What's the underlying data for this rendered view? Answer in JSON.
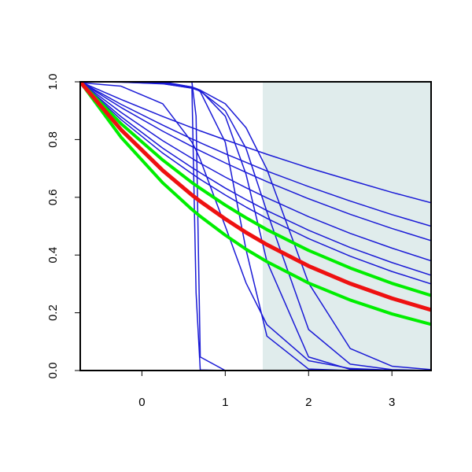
{
  "chart_data": {
    "type": "line",
    "xlim": [
      -0.74,
      3.47
    ],
    "ylim": [
      0,
      1
    ],
    "xticks": [
      0,
      1,
      2,
      3
    ],
    "yticks": [
      {
        "value": 0,
        "label": "0.0"
      },
      {
        "value": 0.2,
        "label": "0.2"
      },
      {
        "value": 0.4,
        "label": "0.4"
      },
      {
        "value": 0.6,
        "label": "0.6"
      },
      {
        "value": 0.8,
        "label": "0.8"
      },
      {
        "value": 1,
        "label": "1.0"
      }
    ],
    "shade": {
      "x": [
        1.45,
        3.47
      ],
      "color": "#e0ecec"
    },
    "x": [
      -0.74,
      -0.25,
      0.25,
      0.6,
      0.65,
      0.7,
      1,
      1.25,
      1.5,
      2,
      2.5,
      3,
      3.47
    ],
    "series": [
      {
        "color": "#1a1ad6",
        "width": 1.5,
        "values": [
          1,
          0.939,
          0.88,
          0.841,
          0.836,
          0.83,
          0.799,
          0.774,
          0.749,
          0.702,
          0.659,
          0.617,
          0.581
        ]
      },
      {
        "color": "#1a1ad6",
        "width": 1.5,
        "values": [
          1,
          0.922,
          0.85,
          0.802,
          0.796,
          0.789,
          0.751,
          0.721,
          0.691,
          0.637,
          0.587,
          0.54,
          0.5
        ]
      },
      {
        "color": "#1a1ad6",
        "width": 1.5,
        "values": [
          1,
          0.911,
          0.829,
          0.776,
          0.768,
          0.761,
          0.719,
          0.686,
          0.654,
          0.595,
          0.541,
          0.492,
          0.45
        ]
      },
      {
        "color": "#1a1ad6",
        "width": 1.5,
        "values": [
          1,
          0.894,
          0.796,
          0.735,
          0.726,
          0.718,
          0.67,
          0.633,
          0.598,
          0.533,
          0.475,
          0.424,
          0.38
        ]
      },
      {
        "color": "#1a1ad6",
        "width": 1.5,
        "values": [
          1,
          0.879,
          0.77,
          0.703,
          0.694,
          0.685,
          0.632,
          0.592,
          0.554,
          0.486,
          0.426,
          0.374,
          0.33
        ]
      },
      {
        "color": "#1a1ad6",
        "width": 1.5,
        "values": [
          1,
          0.869,
          0.753,
          0.682,
          0.672,
          0.662,
          0.608,
          0.566,
          0.527,
          0.457,
          0.396,
          0.343,
          0.3
        ]
      },
      {
        "color": "#1a1ad6",
        "width": 1.5,
        "values": [
          1,
          1,
          1,
          0.982,
          0.269,
          0.002,
          0,
          0,
          0,
          0,
          0,
          0,
          0
        ]
      },
      {
        "color": "#1a1ad6",
        "width": 1.5,
        "values": [
          1,
          1,
          1,
          0.999,
          0.881,
          0.047,
          0,
          0,
          0,
          0,
          0,
          0,
          0
        ]
      },
      {
        "color": "#1a1ad6",
        "width": 1.5,
        "values": [
          1,
          1,
          0.998,
          0.982,
          0.975,
          0.966,
          0.791,
          0.418,
          0.119,
          0.005,
          0,
          0,
          0
        ]
      },
      {
        "color": "#1a1ad6",
        "width": 1.5,
        "values": [
          1,
          1,
          0.997,
          0.982,
          0.977,
          0.971,
          0.881,
          0.679,
          0.378,
          0.047,
          0.004,
          0,
          0
        ]
      },
      {
        "color": "#1a1ad6",
        "width": 1.5,
        "values": [
          1,
          0.999,
          0.994,
          0.978,
          0.973,
          0.968,
          0.9,
          0.769,
          0.55,
          0.142,
          0.022,
          0.003,
          0
        ]
      },
      {
        "color": "#1a1ad6",
        "width": 1.5,
        "values": [
          0.997,
          0.985,
          0.924,
          0.791,
          0.763,
          0.731,
          0.5,
          0.303,
          0.159,
          0.034,
          0.007,
          0.001,
          0
        ]
      },
      {
        "color": "#1a1ad6",
        "width": 1.5,
        "values": [
          1,
          0.999,
          0.993,
          0.979,
          0.975,
          0.971,
          0.924,
          0.841,
          0.697,
          0.303,
          0.076,
          0.015,
          0.003
        ]
      },
      {
        "color": "#00ee00",
        "width": 4,
        "values": [
          1,
          0.855,
          0.729,
          0.651,
          0.641,
          0.631,
          0.573,
          0.529,
          0.488,
          0.416,
          0.355,
          0.302,
          0.26
        ]
      },
      {
        "color": "#00ee00",
        "width": 4,
        "values": [
          1,
          0.808,
          0.65,
          0.558,
          0.546,
          0.534,
          0.469,
          0.42,
          0.377,
          0.303,
          0.244,
          0.196,
          0.16
        ]
      },
      {
        "color": "#ee1111",
        "width": 5,
        "values": [
          1,
          0.834,
          0.693,
          0.608,
          0.597,
          0.586,
          0.525,
          0.478,
          0.436,
          0.362,
          0.301,
          0.25,
          0.21
        ]
      }
    ]
  }
}
